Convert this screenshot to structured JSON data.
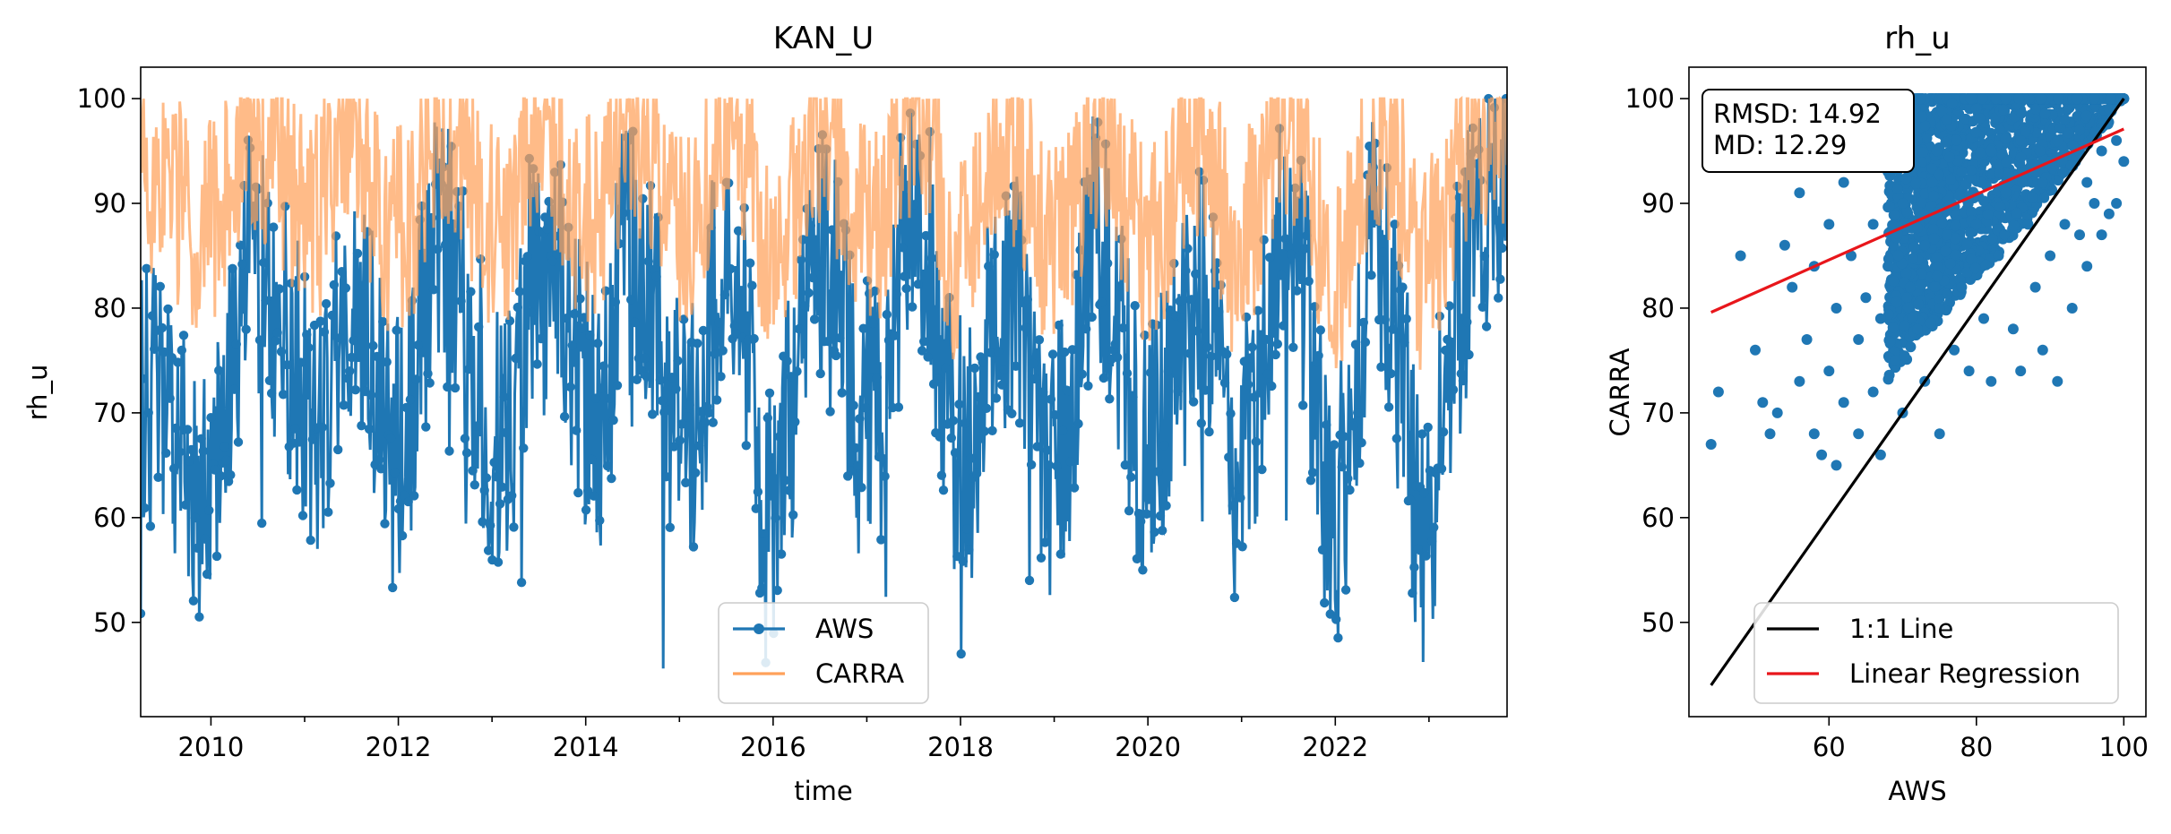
{
  "colors": {
    "aws": "#1f77b4",
    "carra": "#ffa15a",
    "one_to_one": "#000000",
    "regression": "#e8161b"
  },
  "chart_data": [
    {
      "type": "line",
      "title": "KAN_U",
      "xlabel": "time",
      "ylabel": "rh_u",
      "xlim": [
        "2009-04-01",
        "2023-11-01"
      ],
      "ylim": [
        41,
        103
      ],
      "xticks": [
        "2010",
        "2012",
        "2014",
        "2016",
        "2018",
        "2020",
        "2022"
      ],
      "yticks": [
        "50",
        "60",
        "70",
        "80",
        "90",
        "100"
      ],
      "legend_position": "lower center",
      "series": [
        {
          "name": "AWS",
          "style": "line with point markers",
          "x": [
            "2009-06",
            "2009-12",
            "2010-03",
            "2010-06",
            "2010-09",
            "2010-12",
            "2011-03",
            "2011-06",
            "2011-09",
            "2011-12",
            "2012-03",
            "2012-06",
            "2012-09",
            "2012-12",
            "2013-03",
            "2013-06",
            "2013-09",
            "2013-12",
            "2014-03",
            "2014-06",
            "2014-09",
            "2014-12",
            "2015-03",
            "2015-06",
            "2015-09",
            "2015-12",
            "2016-03",
            "2016-06",
            "2016-09",
            "2016-12",
            "2017-03",
            "2017-06",
            "2017-09",
            "2017-12",
            "2018-03",
            "2018-06",
            "2018-09",
            "2018-12",
            "2019-03",
            "2019-06",
            "2019-09",
            "2019-12",
            "2020-03",
            "2020-06",
            "2020-09",
            "2020-12",
            "2021-03",
            "2021-06",
            "2021-09",
            "2021-12",
            "2022-03",
            "2022-06",
            "2022-09",
            "2022-12",
            "2023-03",
            "2023-06",
            "2023-09"
          ],
          "values": [
            72,
            60,
            71,
            86,
            80,
            74,
            68,
            80,
            78,
            64,
            72,
            88,
            82,
            70,
            66,
            84,
            84,
            74,
            68,
            86,
            80,
            70,
            68,
            85,
            82,
            58,
            68,
            86,
            82,
            69,
            71,
            88,
            86,
            66,
            68,
            86,
            78,
            64,
            70,
            88,
            80,
            66,
            69,
            85,
            80,
            64,
            71,
            88,
            83,
            60,
            64,
            88,
            80,
            56,
            70,
            86,
            92
          ],
          "min": 44,
          "max": 100
        },
        {
          "name": "CARRA",
          "style": "line",
          "x": [
            "2009-06",
            "2009-12",
            "2010-03",
            "2010-06",
            "2010-09",
            "2010-12",
            "2011-03",
            "2011-06",
            "2011-09",
            "2011-12",
            "2012-03",
            "2012-06",
            "2012-09",
            "2012-12",
            "2013-03",
            "2013-06",
            "2013-09",
            "2013-12",
            "2014-03",
            "2014-06",
            "2014-09",
            "2014-12",
            "2015-03",
            "2015-06",
            "2015-09",
            "2015-12",
            "2016-03",
            "2016-06",
            "2016-09",
            "2016-12",
            "2017-03",
            "2017-06",
            "2017-09",
            "2017-12",
            "2018-03",
            "2018-06",
            "2018-09",
            "2018-12",
            "2019-03",
            "2019-06",
            "2019-09",
            "2019-12",
            "2020-03",
            "2020-06",
            "2020-09",
            "2020-12",
            "2021-03",
            "2021-06",
            "2021-09",
            "2021-12",
            "2022-03",
            "2022-06",
            "2022-09",
            "2022-12",
            "2023-03",
            "2023-06",
            "2023-09"
          ],
          "values": [
            92,
            86,
            90,
            97,
            94,
            88,
            88,
            97,
            92,
            86,
            88,
            98,
            94,
            87,
            87,
            97,
            94,
            88,
            87,
            97,
            93,
            87,
            87,
            97,
            94,
            84,
            86,
            97,
            94,
            87,
            88,
            98,
            95,
            84,
            86,
            97,
            93,
            85,
            87,
            97,
            92,
            85,
            86,
            96,
            92,
            84,
            88,
            98,
            94,
            82,
            85,
            97,
            92,
            82,
            86,
            96,
            97
          ],
          "min": 66,
          "max": 100
        }
      ]
    },
    {
      "type": "scatter",
      "title": "rh_u",
      "xlabel": "AWS",
      "ylabel": "CARRA",
      "xlim": [
        41,
        103
      ],
      "ylim": [
        41,
        103
      ],
      "xticks": [
        "60",
        "80",
        "100"
      ],
      "yticks": [
        "50",
        "60",
        "70",
        "80",
        "90",
        "100"
      ],
      "legend_position": "lower right",
      "annotation": {
        "rmsd": "RMSD: 14.92",
        "md": "MD: 12.29"
      },
      "series": [
        {
          "name": "1:1 Line",
          "style": "line",
          "x": [
            44,
            100
          ],
          "values": [
            44,
            100
          ]
        },
        {
          "name": "Linear Regression",
          "style": "line",
          "x": [
            44,
            100
          ],
          "values": [
            79.6,
            97.1
          ]
        },
        {
          "name": "",
          "style": "points",
          "points": [
            [
              44,
              67
            ],
            [
              45,
              72
            ],
            [
              48,
              85
            ],
            [
              50,
              76
            ],
            [
              51,
              71
            ],
            [
              52,
              68
            ],
            [
              53,
              70
            ],
            [
              54,
              86
            ],
            [
              55,
              82
            ],
            [
              56,
              73
            ],
            [
              56,
              91
            ],
            [
              57,
              77
            ],
            [
              58,
              68
            ],
            [
              58,
              84
            ],
            [
              59,
              66
            ],
            [
              60,
              88
            ],
            [
              60,
              74
            ],
            [
              61,
              65
            ],
            [
              61,
              80
            ],
            [
              62,
              92
            ],
            [
              62,
              71
            ],
            [
              63,
              85
            ],
            [
              64,
              68
            ],
            [
              64,
              77
            ],
            [
              65,
              95
            ],
            [
              65,
              81
            ],
            [
              66,
              72
            ],
            [
              66,
              88
            ],
            [
              67,
              66
            ],
            [
              67,
              79
            ],
            [
              68,
              93
            ],
            [
              68,
              84
            ],
            [
              69,
              75
            ],
            [
              70,
              70
            ],
            [
              70,
              90
            ],
            [
              71,
              82
            ],
            [
              72,
              96
            ],
            [
              72,
              78
            ],
            [
              73,
              86
            ],
            [
              73,
              73
            ],
            [
              74,
              92
            ],
            [
              75,
              80
            ],
            [
              75,
              68
            ],
            [
              76,
              98
            ],
            [
              76,
              87
            ],
            [
              77,
              76
            ],
            [
              78,
              93
            ],
            [
              78,
              82
            ],
            [
              79,
              74
            ],
            [
              80,
              99
            ],
            [
              80,
              88
            ],
            [
              81,
              79
            ],
            [
              82,
              95
            ],
            [
              82,
              73
            ],
            [
              83,
              85
            ],
            [
              84,
              100
            ],
            [
              84,
              91
            ],
            [
              85,
              78
            ],
            [
              86,
              96
            ],
            [
              86,
              74
            ],
            [
              87,
              88
            ],
            [
              88,
              99
            ],
            [
              88,
              82
            ],
            [
              89,
              76
            ],
            [
              90,
              94
            ],
            [
              90,
              85
            ],
            [
              91,
              73
            ],
            [
              92,
              98
            ],
            [
              92,
              88
            ],
            [
              93,
              80
            ],
            [
              94,
              97
            ],
            [
              94,
              87
            ],
            [
              95,
              92
            ],
            [
              95,
              84
            ],
            [
              96,
              100
            ],
            [
              96,
              90
            ],
            [
              97,
              95
            ],
            [
              97,
              87
            ],
            [
              98,
              99
            ],
            [
              98,
              89
            ],
            [
              99,
              96
            ],
            [
              99,
              90
            ],
            [
              100,
              100
            ],
            [
              100,
              94
            ]
          ]
        }
      ]
    }
  ]
}
